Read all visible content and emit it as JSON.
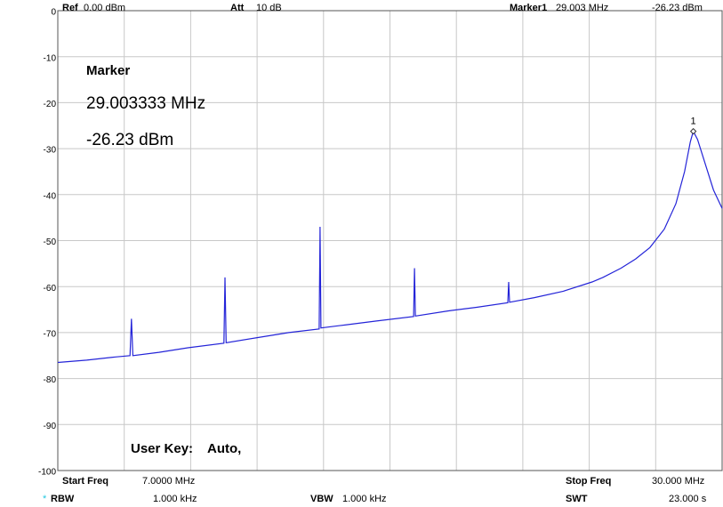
{
  "chart_data": {
    "type": "line",
    "xlim": [
      7,
      30
    ],
    "xticks": [
      7,
      9.3,
      11.6,
      13.9,
      16.2,
      18.5,
      20.8,
      23.1,
      25.4,
      27.7,
      30
    ],
    "ylim": [
      -100,
      0
    ],
    "yticks": [
      0,
      -10,
      -20,
      -30,
      -40,
      -50,
      -60,
      -70,
      -80,
      -90,
      -100
    ],
    "grid": true,
    "series": [
      {
        "color": "#2424d8",
        "x": [
          7,
          8,
          9,
          9.5,
          9.55,
          9.6,
          10.5,
          11.5,
          12.75,
          12.79,
          12.83,
          14,
          15,
          16.05,
          16.08,
          16.11,
          17,
          18,
          19.32,
          19.35,
          19.38,
          20.5,
          21.5,
          22.58,
          22.61,
          22.64,
          23.5,
          24.5,
          25.5,
          25.87,
          26.5,
          27,
          27.5,
          28,
          28.4,
          28.7,
          28.9,
          29.003,
          29.15,
          29.4,
          29.7,
          30
        ],
        "values": [
          -76.5,
          -76,
          -75.3,
          -75,
          -67,
          -75,
          -74.3,
          -73.3,
          -72.3,
          -58,
          -72.2,
          -71,
          -70,
          -69.2,
          -47,
          -69,
          -68.3,
          -67.5,
          -66.5,
          -56,
          -66.4,
          -65.3,
          -64.5,
          -63.5,
          -59,
          -63.4,
          -62.4,
          -61,
          -59,
          -58,
          -56,
          -54,
          -51.5,
          -47.5,
          -42,
          -35,
          -28.5,
          -26.23,
          -28,
          -33,
          -39,
          -43
        ]
      }
    ],
    "marker": {
      "x": 29.003,
      "value": -26.23,
      "label": "1"
    }
  },
  "header": {
    "ref_label": "Ref",
    "ref_value": "0.00 dBm",
    "att_label": "Att",
    "att_value": "10 dB",
    "marker_label": "Marker1",
    "marker_freq": "29.003 MHz",
    "marker_level": "-26.23 dBm"
  },
  "marker_readout": {
    "title": "Marker",
    "freq": "29.003333 MHz",
    "level": "-26.23 dBm"
  },
  "user_key": {
    "label": "User Key:",
    "value": "Auto,"
  },
  "footer": {
    "start_label": "Start Freq",
    "start_value": "7.0000 MHz",
    "stop_label": "Stop Freq",
    "stop_value": "30.000 MHz",
    "rbw_star": "*",
    "rbw_label": "RBW",
    "rbw_value": "1.000 kHz",
    "vbw_label": "VBW",
    "vbw_value": "1.000 kHz",
    "swt_label": "SWT",
    "swt_value": "23.000 s"
  }
}
